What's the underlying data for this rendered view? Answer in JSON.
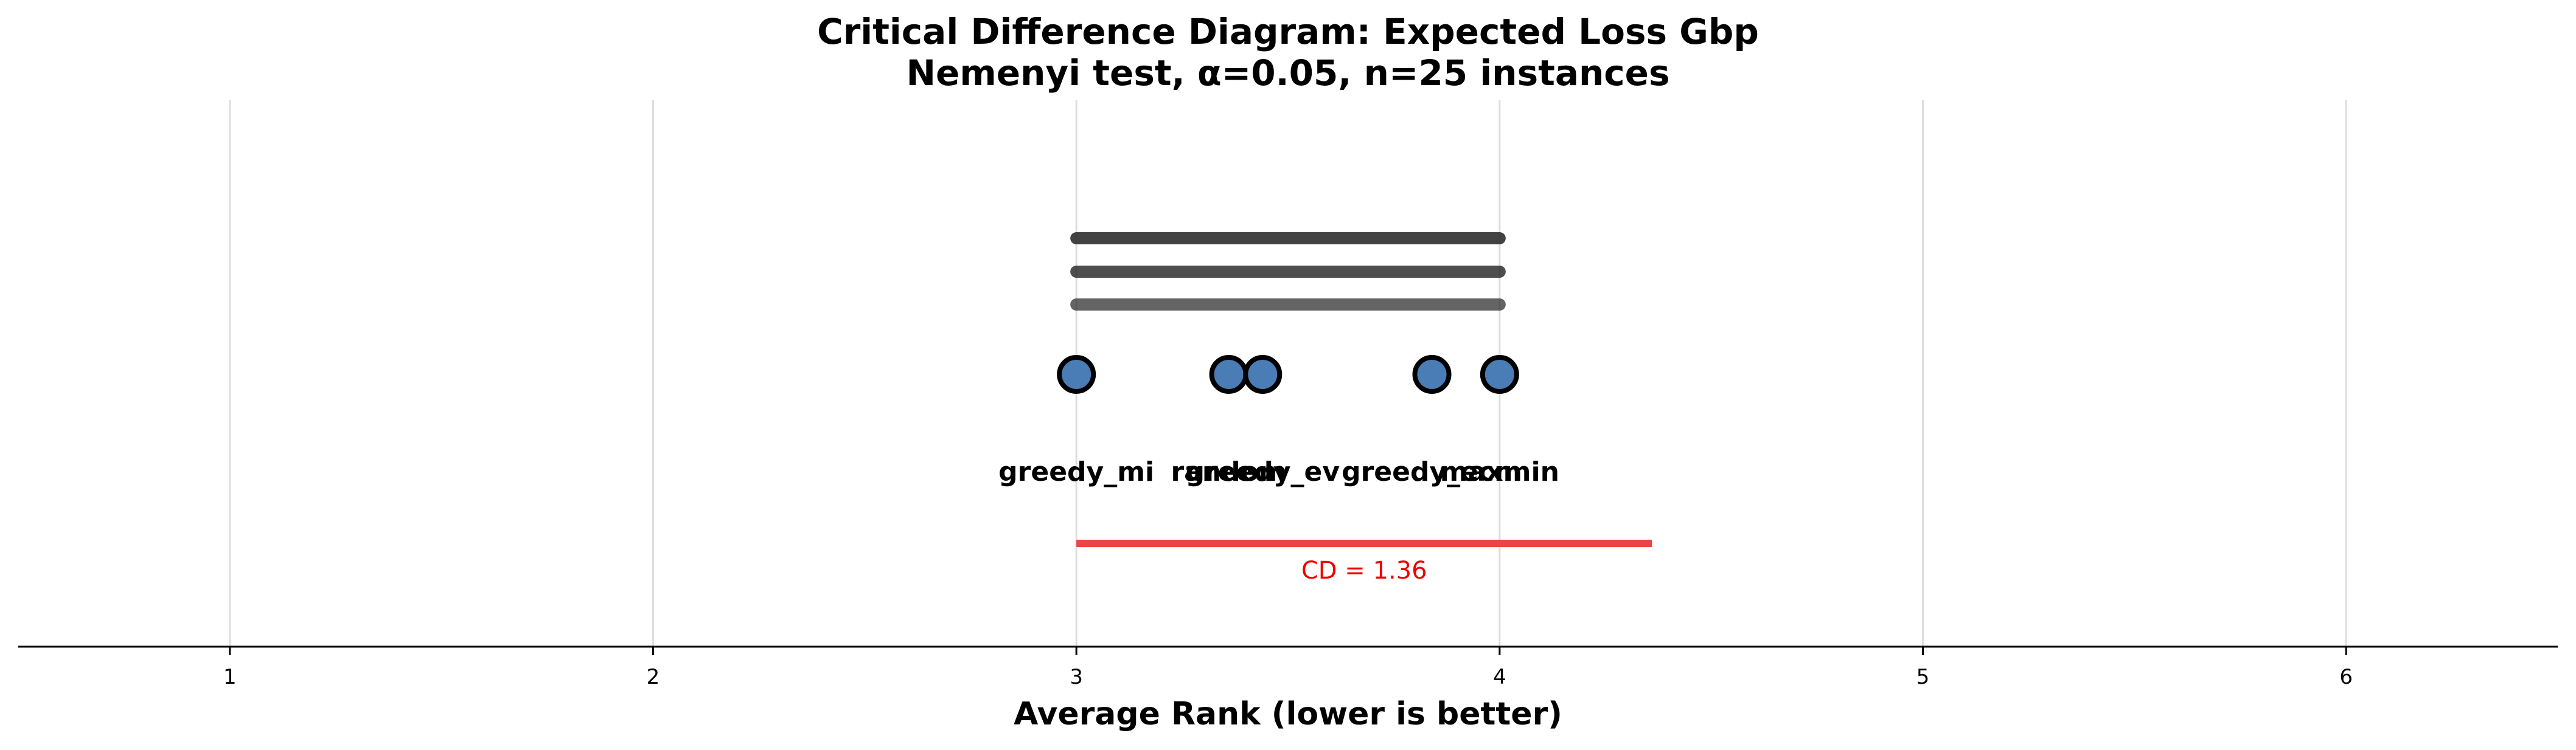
{
  "chart_data": {
    "type": "scatter",
    "title": "Critical Difference Diagram: Expected Loss Gbp",
    "subtitle": "Nemenyi test, α=0.05, n=25 instances",
    "xlabel": "Average Rank (lower is better)",
    "xlim": [
      0.5,
      6.5
    ],
    "xticks": [
      1,
      2,
      3,
      4,
      5,
      6
    ],
    "grid": true,
    "methods": [
      {
        "name": "greedy_mi",
        "rank": 3.0
      },
      {
        "name": "random",
        "rank": 3.36
      },
      {
        "name": "greedy_ev",
        "rank": 3.44
      },
      {
        "name": "greedy_ecm",
        "rank": 3.84
      },
      {
        "name": "maxmin",
        "rank": 4.0
      }
    ],
    "cliques": [
      {
        "from": 3.0,
        "to": 4.0
      },
      {
        "from": 3.0,
        "to": 4.0
      },
      {
        "from": 3.0,
        "to": 4.0
      }
    ],
    "critical_difference": {
      "value": 1.36,
      "start": 3.0,
      "label": "CD = 1.36"
    },
    "colors": {
      "marker_fill": "#4a7db5",
      "marker_edge": "#000000",
      "clique_lines": "#222222",
      "cd_line": "#ee4444",
      "cd_text": "#ee0000",
      "grid": "#dddddd"
    }
  }
}
